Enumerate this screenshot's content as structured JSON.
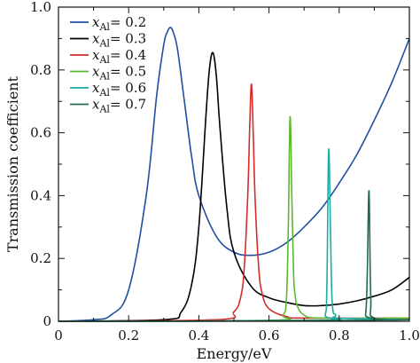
{
  "chart_data": {
    "type": "line",
    "title": "",
    "xlabel": "Energy/eV",
    "ylabel": "Transmission coefficient",
    "xlim": [
      0,
      1.0
    ],
    "ylim": [
      0,
      1.0
    ],
    "x_ticks": [
      "0",
      "0.2",
      "0.4",
      "0.6",
      "0.8",
      "1.0"
    ],
    "y_ticks": [
      "0",
      "0.2",
      "0.4",
      "0.6",
      "0.8",
      "1.0"
    ],
    "grid": false,
    "legend_position": "top-left",
    "legend_var": "x",
    "legend_sub": "Al",
    "series": [
      {
        "name": "x_Al = 0.2",
        "legend_value": "= 0.2",
        "color": "#1f4fa0",
        "x": [
          0.0,
          0.1,
          0.15,
          0.2,
          0.25,
          0.28,
          0.3,
          0.31,
          0.32,
          0.33,
          0.34,
          0.36,
          0.38,
          0.4,
          0.45,
          0.5,
          0.55,
          0.6,
          0.65,
          0.7,
          0.75,
          0.8,
          0.85,
          0.9,
          0.95,
          1.0
        ],
        "y": [
          0.0,
          0.005,
          0.02,
          0.1,
          0.4,
          0.72,
          0.88,
          0.92,
          0.935,
          0.91,
          0.86,
          0.69,
          0.52,
          0.4,
          0.27,
          0.22,
          0.21,
          0.22,
          0.25,
          0.3,
          0.36,
          0.44,
          0.53,
          0.64,
          0.76,
          0.9
        ]
      },
      {
        "name": "x_Al = 0.3",
        "legend_value": "= 0.3",
        "color": "#000000",
        "x": [
          0.0,
          0.3,
          0.35,
          0.38,
          0.4,
          0.42,
          0.43,
          0.44,
          0.45,
          0.46,
          0.48,
          0.5,
          0.55,
          0.6,
          0.65,
          0.7,
          0.75,
          0.8,
          0.85,
          0.9,
          0.95,
          1.0
        ],
        "y": [
          0.0,
          0.005,
          0.03,
          0.12,
          0.3,
          0.65,
          0.8,
          0.855,
          0.78,
          0.62,
          0.36,
          0.22,
          0.11,
          0.075,
          0.06,
          0.05,
          0.05,
          0.055,
          0.065,
          0.08,
          0.1,
          0.14
        ]
      },
      {
        "name": "x_Al = 0.4",
        "legend_value": "= 0.4",
        "color": "#d62b2b",
        "x": [
          0.0,
          0.45,
          0.5,
          0.52,
          0.53,
          0.54,
          0.545,
          0.55,
          0.555,
          0.56,
          0.57,
          0.58,
          0.6,
          0.65,
          0.7,
          1.0
        ],
        "y": [
          0.0,
          0.005,
          0.03,
          0.08,
          0.18,
          0.42,
          0.62,
          0.755,
          0.6,
          0.4,
          0.18,
          0.09,
          0.04,
          0.015,
          0.01,
          0.01
        ]
      },
      {
        "name": "x_Al = 0.5",
        "legend_value": "= 0.5",
        "color": "#5cb82e",
        "x": [
          0.0,
          0.6,
          0.64,
          0.65,
          0.655,
          0.66,
          0.665,
          0.67,
          0.675,
          0.68,
          0.7,
          0.75,
          1.0
        ],
        "y": [
          0.0,
          0.003,
          0.02,
          0.08,
          0.3,
          0.65,
          0.4,
          0.15,
          0.08,
          0.05,
          0.02,
          0.01,
          0.01
        ]
      },
      {
        "name": "x_Al = 0.6",
        "legend_value": "= 0.6",
        "color": "#1aaba6",
        "x": [
          0.0,
          0.74,
          0.76,
          0.765,
          0.77,
          0.775,
          0.78,
          0.79,
          0.8,
          1.0
        ],
        "y": [
          0.0,
          0.003,
          0.02,
          0.12,
          0.545,
          0.3,
          0.06,
          0.02,
          0.01,
          0.005
        ]
      },
      {
        "name": "x_Al = 0.7",
        "legend_value": "= 0.7",
        "color": "#1f6b4a",
        "x": [
          0.0,
          0.86,
          0.875,
          0.88,
          0.885,
          0.89,
          0.9,
          1.0
        ],
        "y": [
          0.0,
          0.003,
          0.02,
          0.15,
          0.415,
          0.08,
          0.01,
          0.005
        ]
      }
    ]
  }
}
